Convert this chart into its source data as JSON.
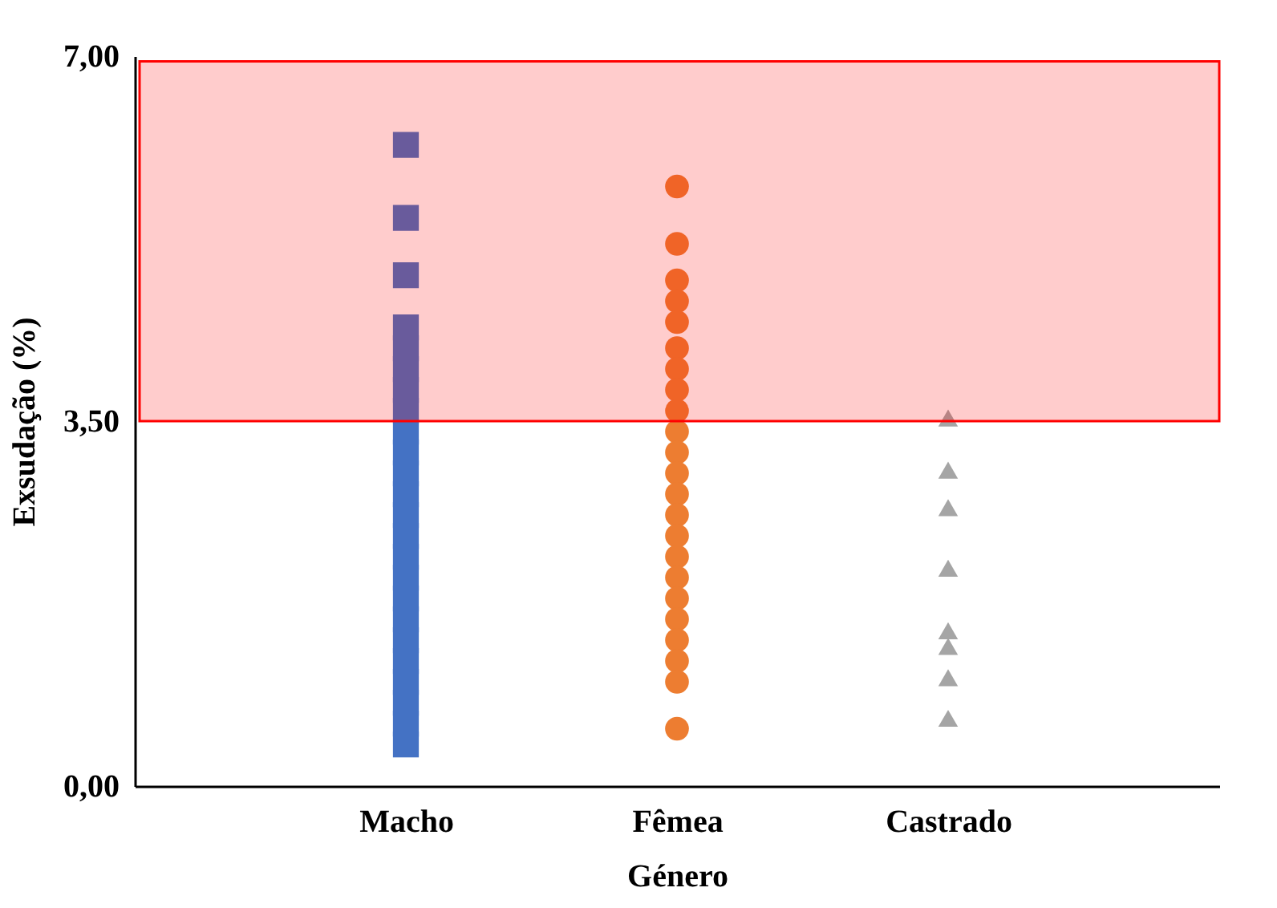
{
  "chart_data": {
    "type": "scatter",
    "xlabel": "Género",
    "ylabel": "Exsudação (%)",
    "categories": [
      "Macho",
      "Fêmea",
      "Castrado"
    ],
    "ylim": [
      0,
      7
    ],
    "yticks": [
      {
        "value": 0,
        "label": "0,00"
      },
      {
        "value": 3.5,
        "label": "3,50"
      },
      {
        "value": 7,
        "label": "7,00"
      }
    ],
    "grid": false,
    "bands": [
      {
        "axis": "y",
        "from": 3.5,
        "to": 6.95,
        "color": "#ff0000"
      }
    ],
    "series": [
      {
        "color": "#4472c4",
        "marker": "square",
        "x": [
          "Macho",
          "Macho",
          "Macho",
          "Macho",
          "Macho",
          "Macho",
          "Macho",
          "Macho",
          "Macho",
          "Macho",
          "Macho",
          "Macho",
          "Macho",
          "Macho",
          "Macho",
          "Macho",
          "Macho",
          "Macho",
          "Macho",
          "Macho",
          "Macho",
          "Macho",
          "Macho",
          "Macho"
        ],
        "values": [
          6.15,
          5.45,
          4.9,
          4.4,
          4.2,
          4.0,
          3.8,
          3.6,
          3.4,
          3.2,
          3.0,
          2.8,
          2.6,
          2.4,
          2.2,
          2.0,
          1.8,
          1.6,
          1.4,
          1.2,
          1.0,
          0.8,
          0.6,
          0.4
        ]
      },
      {
        "color": "#ed7d31",
        "marker": "circle",
        "x": [
          "Fêmea",
          "Fêmea",
          "Fêmea",
          "Fêmea",
          "Fêmea",
          "Fêmea",
          "Fêmea",
          "Fêmea",
          "Fêmea",
          "Fêmea",
          "Fêmea",
          "Fêmea",
          "Fêmea",
          "Fêmea",
          "Fêmea",
          "Fêmea",
          "Fêmea",
          "Fêmea",
          "Fêmea",
          "Fêmea",
          "Fêmea",
          "Fêmea",
          "Fêmea"
        ],
        "values": [
          5.75,
          5.2,
          4.85,
          4.65,
          4.45,
          4.2,
          4.0,
          3.8,
          3.6,
          3.4,
          3.2,
          3.0,
          2.8,
          2.6,
          2.4,
          2.2,
          2.0,
          1.8,
          1.6,
          1.4,
          1.2,
          1.0,
          0.55
        ]
      },
      {
        "color": "#a5a5a5",
        "marker": "triangle",
        "x": [
          "Castrado",
          "Castrado",
          "Castrado",
          "Castrado",
          "Castrado",
          "Castrado",
          "Castrado",
          "Castrado"
        ],
        "values": [
          3.53,
          3.03,
          2.67,
          2.09,
          1.49,
          1.34,
          1.04,
          0.65
        ]
      }
    ]
  }
}
